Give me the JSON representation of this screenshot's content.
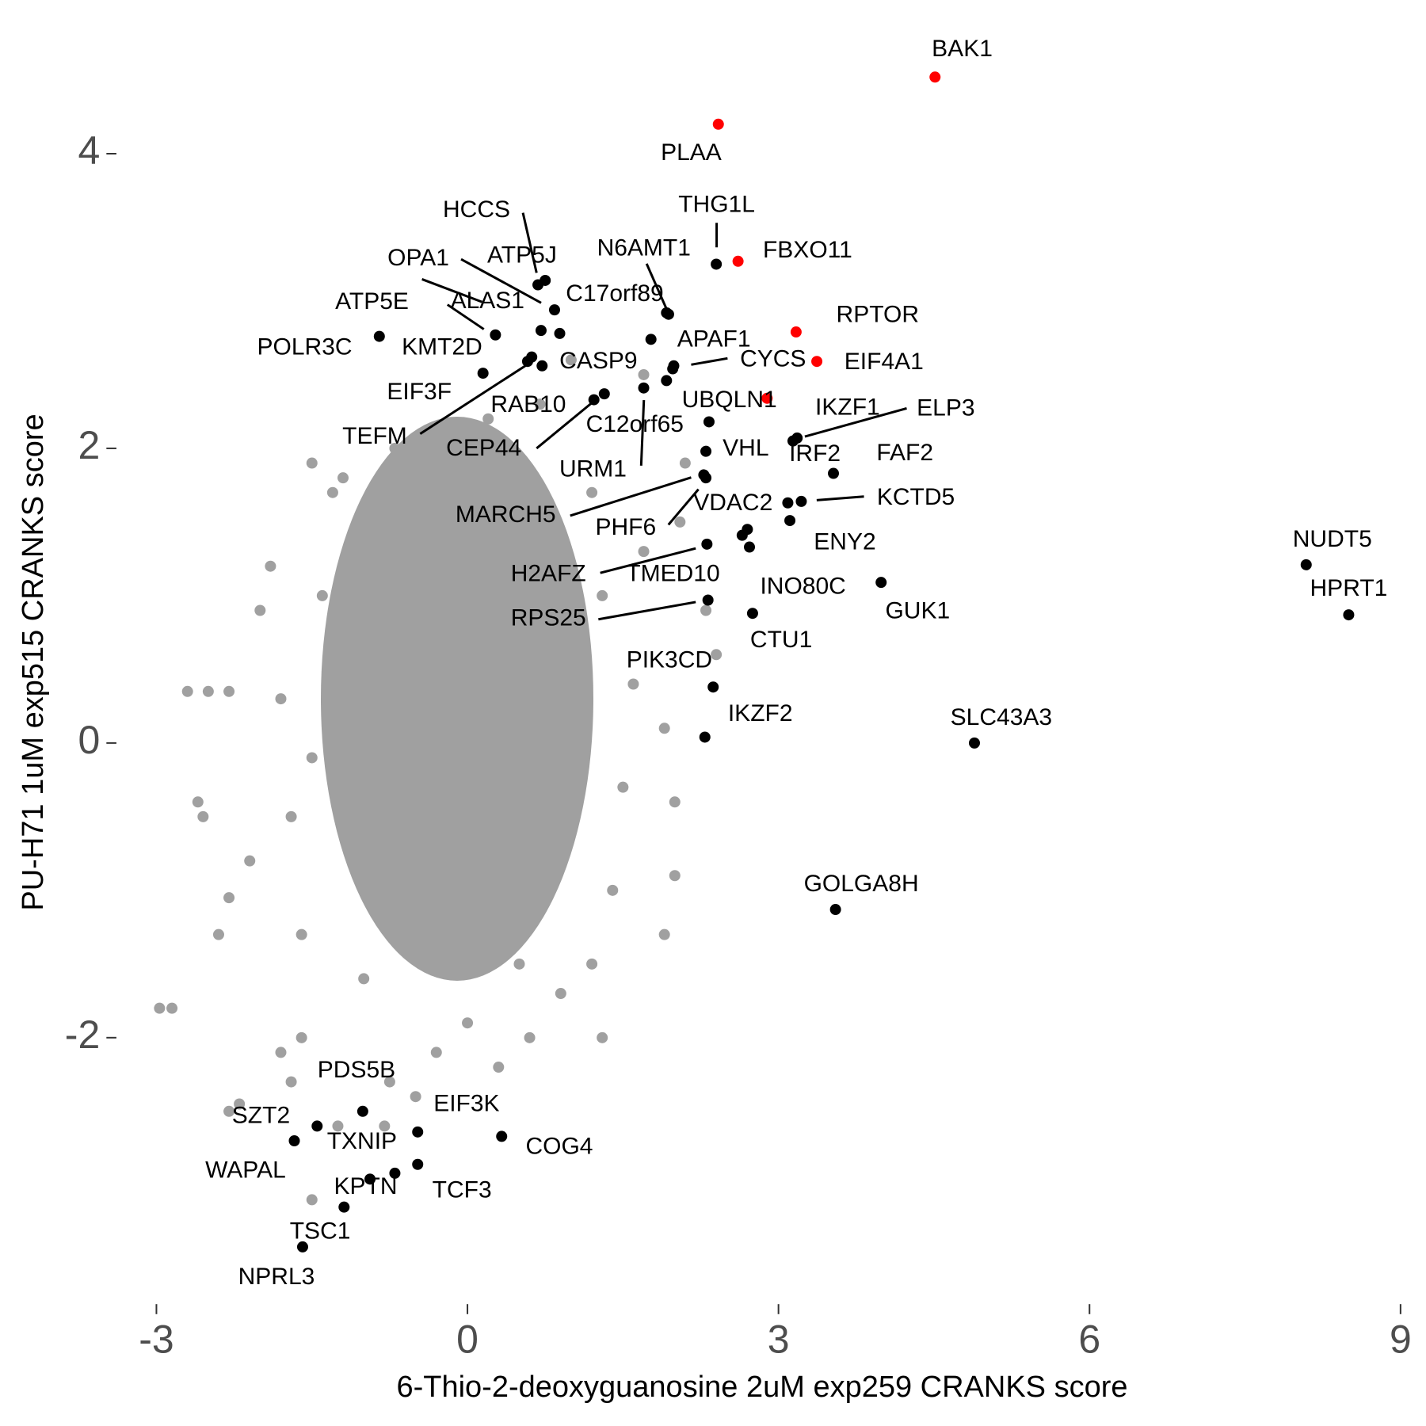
{
  "chart_data": {
    "type": "scatter",
    "x_label": "6-Thio-2-deoxyguanosine 2uM exp259 CRANKS score",
    "y_label": "PU-H71 1uM exp515 CRANKS score",
    "xlim": [
      -3.2,
      9.1
    ],
    "ylim": [
      -3.7,
      4.7
    ],
    "xticks": [
      -3,
      0,
      3,
      6,
      9
    ],
    "yticks": [
      -2,
      0,
      2,
      4
    ],
    "grid": false,
    "series": [
      {
        "color": "#a0a0a0",
        "x": [
          -2.7,
          -2.5,
          -2.3,
          -2.6,
          -2.55,
          -2.4,
          -2.1,
          -2.3,
          -2.0,
          -1.9,
          -1.5,
          -1.2,
          -1.3,
          -1.0,
          -2.85,
          -2.97,
          -2.3,
          -2.2,
          -1.8,
          -1.6,
          -1.7,
          -1.5,
          -1.25,
          -0.8,
          -0.75,
          -0.3,
          0.3,
          0.6,
          1.3,
          0.9,
          1.2,
          1.9,
          2.0,
          2.0,
          1.9,
          2.4,
          2.3,
          1.7,
          1.2,
          0.7,
          0.2,
          -0.3,
          -0.7,
          2.1,
          2.05,
          1.0,
          1.7,
          -1.8,
          -1.7,
          -1.6,
          1.5,
          1.6,
          1.4,
          -0.5,
          0.0,
          -1.0,
          0.5,
          -1.4,
          -1.5,
          1.3
        ],
        "y": [
          0.35,
          0.35,
          0.35,
          -0.4,
          -0.5,
          -1.3,
          -0.8,
          -1.05,
          0.9,
          1.2,
          1.9,
          1.8,
          1.7,
          1.6,
          -1.8,
          -1.8,
          -2.5,
          -2.45,
          -2.1,
          -2.0,
          -2.3,
          -3.1,
          -2.6,
          -2.6,
          -2.3,
          -2.1,
          -2.2,
          -2.0,
          -2.0,
          -1.7,
          -1.5,
          -1.3,
          -0.9,
          -0.4,
          0.1,
          0.6,
          0.9,
          1.3,
          1.7,
          2.3,
          2.2,
          2.0,
          2.0,
          1.9,
          1.5,
          2.6,
          2.5,
          0.3,
          -0.5,
          -1.3,
          -0.3,
          0.4,
          -1.0,
          -2.4,
          -1.9,
          -1.6,
          -1.5,
          1.0,
          -0.1,
          1.0
        ]
      },
      {
        "color": "#000000",
        "x": [
          2.4,
          0.75,
          0.68,
          0.84,
          1.94,
          1.92,
          0.71,
          0.89,
          0.27,
          -0.85,
          0.15,
          0.72,
          0.58,
          0.62,
          1.77,
          1.99,
          1.98,
          1.32,
          1.22,
          1.7,
          1.92,
          2.33,
          2.3,
          3.14,
          3.18,
          3.09,
          3.22,
          3.11,
          3.53,
          2.28,
          2.3,
          2.7,
          2.65,
          2.72,
          2.31,
          3.99,
          2.32,
          2.75,
          2.37,
          2.29,
          4.89,
          3.55,
          8.09,
          8.5,
          -1.01,
          -1.45,
          -1.67,
          -0.48,
          0.33,
          -0.7,
          -0.48,
          -0.94,
          -1.19,
          -1.59
        ],
        "y": [
          3.25,
          3.14,
          3.11,
          2.94,
          2.91,
          2.92,
          2.8,
          2.78,
          2.77,
          2.76,
          2.51,
          2.56,
          2.59,
          2.62,
          2.74,
          2.56,
          2.54,
          2.37,
          2.33,
          2.41,
          2.46,
          2.18,
          1.98,
          2.05,
          2.07,
          1.63,
          1.64,
          1.51,
          1.83,
          1.82,
          1.8,
          1.45,
          1.41,
          1.33,
          1.35,
          1.09,
          0.97,
          0.88,
          0.38,
          0.04,
          0.0,
          -1.13,
          1.21,
          0.87,
          -2.5,
          -2.6,
          -2.7,
          -2.64,
          -2.67,
          -2.92,
          -2.86,
          -2.96,
          -3.15,
          -3.42
        ],
        "labels": [
          "THG1L",
          "ATP5J",
          "HCCS",
          "C17orf89",
          "N6AMT1",
          null,
          "OPA1",
          "ATP5E",
          "ALAS1",
          "POLR3C",
          "KMT2D",
          "CASP9",
          "TEFM",
          "EIF3F",
          "APAF1",
          "CYCS",
          null,
          "RAB10",
          "CEP44",
          "URM1",
          "C12orf65",
          null,
          "VHL",
          "IKZF1",
          "ELP3",
          "IRF2",
          "KCTD5",
          "ENY2",
          "FAF2",
          "MARCH5",
          "PHF6",
          "VDAC2",
          "INO80C",
          "TMED10",
          "H2AFZ",
          "GUK1",
          "RPS25",
          "CTU1",
          "PIK3CD",
          "IKZF2",
          "SLC43A3",
          "GOLGA8H",
          "NUDT5",
          "HPRT1",
          "PDS5B",
          "SZT2",
          "WAPAL",
          "EIF3K",
          "COG4",
          "TXNIP",
          "TCF3",
          "KPTN",
          "TSC1",
          "NPRL3"
        ]
      },
      {
        "color": "#ff0000",
        "x": [
          4.51,
          2.42,
          2.61,
          3.17,
          3.37,
          2.89
        ],
        "y": [
          4.52,
          4.2,
          3.27,
          2.79,
          2.59,
          2.34
        ],
        "labels": [
          "BAK1",
          "PLAA",
          "FBXO11",
          "RPTOR",
          "EIF4A1",
          "UBQLN1"
        ]
      }
    ]
  }
}
